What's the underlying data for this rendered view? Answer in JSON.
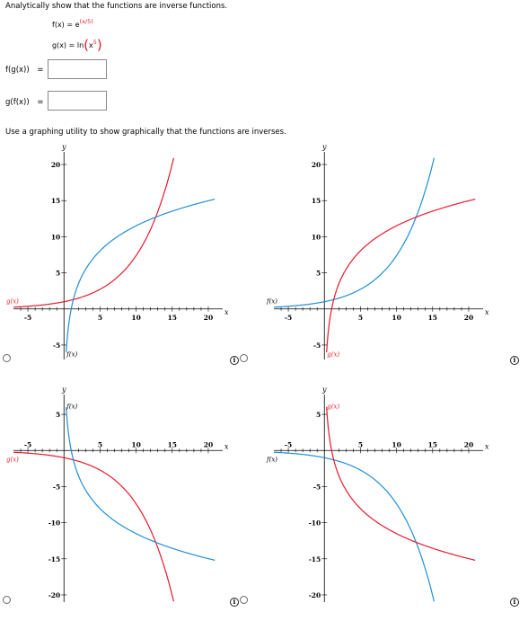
{
  "question": {
    "instruction": "Analytically show that the functions are inverse functions.",
    "f_lhs": "f(x)",
    "f_rhs_base": "e",
    "f_rhs_exp": "(x/5)",
    "g_lhs": "g(x)",
    "g_rhs_ln": "ln",
    "g_rhs_x": "x",
    "g_rhs_exp": "5",
    "fg_label": "f(g(x))",
    "gf_label": "g(f(x))",
    "eq": "=",
    "fg_value": "",
    "gf_value": "",
    "graph_instruction": "Use a graphing utility to show graphically that the functions are inverses."
  },
  "colors": {
    "red": "#e8192c",
    "blue": "#1e8fd6",
    "axis": "#000000"
  },
  "icons": {
    "info": "info-icon",
    "radio": "radio-button"
  },
  "options": [
    {
      "id": "A",
      "ticks": {
        "x": [
          "-5",
          "5",
          "10",
          "15",
          "20"
        ],
        "y": [
          "20",
          "15",
          "10",
          "5",
          "-5"
        ]
      },
      "axis_x": "x",
      "axis_y": "y",
      "red_label": "g(x)",
      "blue_label": "f(x)",
      "chart_data": {
        "type": "line",
        "xlim": [
          -7,
          21
        ],
        "ylim": [
          -7,
          21
        ],
        "series": [
          {
            "name": "f(x)",
            "color": "red",
            "fn": "exp",
            "sign": 1
          },
          {
            "name": "g(x)",
            "color": "blue",
            "fn": "log",
            "sign": 1
          }
        ]
      }
    },
    {
      "id": "B",
      "ticks": {
        "x": [
          "-5",
          "5",
          "10",
          "15",
          "20"
        ],
        "y": [
          "20",
          "15",
          "10",
          "5",
          "-5"
        ]
      },
      "axis_x": "x",
      "axis_y": "y",
      "red_label": "g(x)",
      "blue_label": "f(x)",
      "chart_data": {
        "type": "line",
        "xlim": [
          -7,
          21
        ],
        "ylim": [
          -7,
          21
        ],
        "series": [
          {
            "name": "f(x)",
            "color": "blue",
            "fn": "exp",
            "sign": 1
          },
          {
            "name": "g(x)",
            "color": "red",
            "fn": "log",
            "sign": 1
          }
        ]
      }
    },
    {
      "id": "C",
      "ticks": {
        "x": [
          "-5",
          "5",
          "10",
          "15",
          "20"
        ],
        "y": [
          "5",
          "-5",
          "-10",
          "-15",
          "-20"
        ]
      },
      "axis_x": "x",
      "axis_y": "y",
      "red_label": "g(x)",
      "blue_label": "f(x)",
      "chart_data": {
        "type": "line",
        "xlim": [
          -7,
          21
        ],
        "ylim": [
          -21,
          7
        ],
        "series": [
          {
            "name": "f(x)",
            "color": "red",
            "fn": "exp",
            "sign": -1
          },
          {
            "name": "g(x)",
            "color": "blue",
            "fn": "log",
            "sign": -1
          }
        ]
      }
    },
    {
      "id": "D",
      "ticks": {
        "x": [
          "-5",
          "5",
          "10",
          "15",
          "20"
        ],
        "y": [
          "5",
          "-5",
          "-10",
          "-15",
          "-20"
        ]
      },
      "axis_x": "x",
      "axis_y": "y",
      "red_label": "g(x)",
      "blue_label": "f(x)",
      "chart_data": {
        "type": "line",
        "xlim": [
          -7,
          21
        ],
        "ylim": [
          -21,
          7
        ],
        "series": [
          {
            "name": "f(x)",
            "color": "blue",
            "fn": "exp",
            "sign": -1
          },
          {
            "name": "g(x)",
            "color": "red",
            "fn": "log",
            "sign": -1
          }
        ]
      }
    }
  ]
}
